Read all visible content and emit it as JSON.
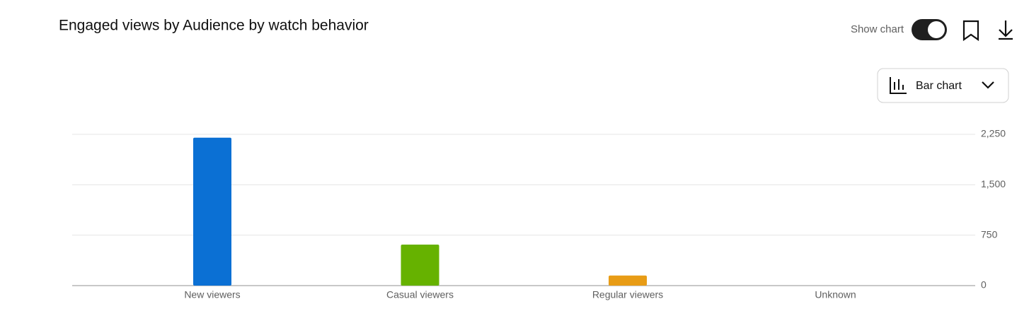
{
  "chart_data": {
    "type": "bar",
    "title": "Engaged views by Audience by watch behavior",
    "categories": [
      "New viewers",
      "Casual viewers",
      "Regular viewers",
      "Unknown"
    ],
    "values": [
      2200,
      610,
      150,
      0
    ],
    "colors": [
      "#0b70d4",
      "#66b200",
      "#e89c16",
      "#999999"
    ],
    "ylim": [
      0,
      2250
    ],
    "yticks": [
      0,
      750,
      {
        "value": 1500,
        "label": "1,500"
      },
      {
        "value": 2250,
        "label": "2,250"
      }
    ],
    "grid": true
  },
  "controls": {
    "show_chart": "Show chart",
    "chart_type": "Bar chart"
  }
}
